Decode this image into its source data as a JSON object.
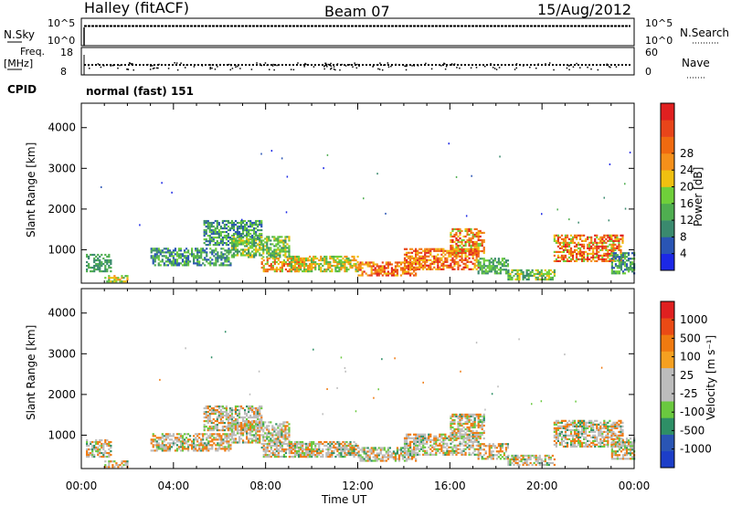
{
  "header": {
    "station": "Halley (fitACF)",
    "beam": "Beam 07",
    "date": "15/Aug/2012"
  },
  "status_panels": {
    "nsky_label": "N.Sky",
    "nsearch_label": "N.Search",
    "nsky_ticks": [
      "10^5",
      "10^0"
    ],
    "nsearch_ticks": [
      "10^5",
      "10^0"
    ],
    "freq_label_1": "Freq.",
    "freq_label_2": "[MHz]",
    "freq_ticks": [
      "18",
      "8"
    ],
    "nave_label": "Nave",
    "nave_ticks": [
      "60",
      "0"
    ],
    "cpid_label": "CPID",
    "cpid_value": "normal (fast) 151"
  },
  "colors": {
    "power_scale": [
      "#1c28e6",
      "#2a55b4",
      "#3a8a6e",
      "#4fae50",
      "#6fcf3a",
      "#f0c010",
      "#f5901a",
      "#f06a10",
      "#e8451a",
      "#e02020"
    ],
    "velocity_scale": [
      "#1c3ec8",
      "#2a55b4",
      "#2e8f66",
      "#6ac93f",
      "#bcbcbc",
      "#bcbcbc",
      "#f5a020",
      "#f07a10",
      "#ea4a15",
      "#e02020"
    ]
  },
  "chart_data": [
    {
      "type": "heatmap",
      "panel": "power",
      "ylabel": "Slant Range [km]",
      "xlabel": "Time UT",
      "x_ticks": [
        "00:00",
        "04:00",
        "08:00",
        "12:00",
        "16:00",
        "20:00",
        "00:00"
      ],
      "y_ticks": [
        "1000",
        "2000",
        "3000",
        "4000"
      ],
      "ylim": [
        180,
        4600
      ],
      "colorbar_label": "Power [dB]",
      "colorbar_ticks": [
        "4",
        "8",
        "12",
        "16",
        "20",
        "24",
        "28"
      ]
    },
    {
      "type": "heatmap",
      "panel": "velocity",
      "ylabel": "Slant Range [km]",
      "xlabel": "Time UT",
      "x_ticks": [
        "00:00",
        "04:00",
        "08:00",
        "12:00",
        "16:00",
        "20:00",
        "00:00"
      ],
      "y_ticks": [
        "1000",
        "2000",
        "3000",
        "4000"
      ],
      "ylim": [
        180,
        4600
      ],
      "colorbar_label": "Velocity [m s⁻¹]",
      "colorbar_ticks": [
        "1000",
        "500",
        "100",
        "25",
        "-25",
        "-100",
        "-500",
        "-1000"
      ]
    }
  ]
}
